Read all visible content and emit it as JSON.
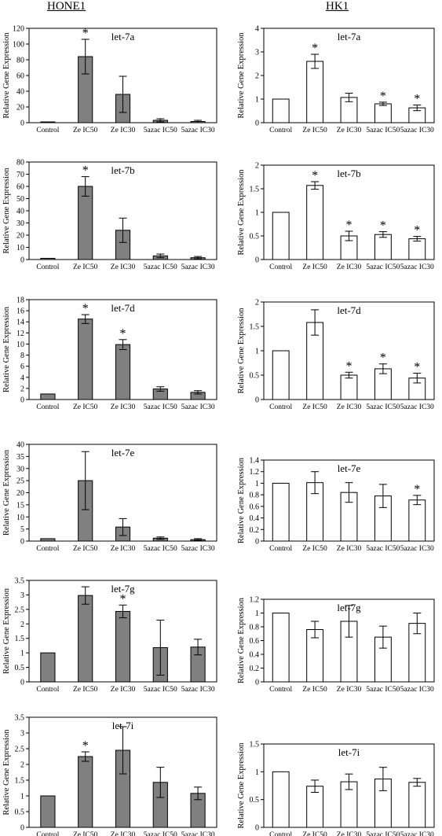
{
  "headers": {
    "left": "HONE1",
    "right": "HK1"
  },
  "common": {
    "ylabel": "Relative Gene Expression",
    "categories": [
      "Control",
      "Ze IC50",
      "Ze IC30",
      "5azac IC50",
      "5azac IC30"
    ],
    "colors": {
      "hone1_bar": "#808080",
      "hk1_bar": "#ffffff",
      "stroke": "#000000"
    },
    "significance_mark": "*"
  },
  "chart_data": [
    {
      "type": "bar",
      "column": "HONE1",
      "title": "let-7a",
      "ylim": [
        0,
        120
      ],
      "yticks": [
        0,
        20,
        40,
        60,
        80,
        100,
        120
      ],
      "values": [
        1,
        84,
        36,
        3,
        1.5
      ],
      "errors": [
        0,
        22,
        23,
        2,
        1.5
      ],
      "significant": [
        false,
        true,
        false,
        false,
        false
      ]
    },
    {
      "type": "bar",
      "column": "HK1",
      "title": "let-7a",
      "ylim": [
        0,
        4
      ],
      "yticks": [
        0,
        1,
        2,
        3,
        4
      ],
      "values": [
        1,
        2.6,
        1.07,
        0.8,
        0.63
      ],
      "errors": [
        0,
        0.3,
        0.18,
        0.07,
        0.12
      ],
      "significant": [
        false,
        true,
        false,
        true,
        true
      ]
    },
    {
      "type": "bar",
      "column": "HONE1",
      "title": "let-7b",
      "ylim": [
        0,
        80
      ],
      "yticks": [
        0,
        10,
        20,
        30,
        40,
        50,
        60,
        70,
        80
      ],
      "values": [
        1,
        60,
        24,
        3,
        1.5
      ],
      "errors": [
        0,
        8,
        10,
        1.5,
        1
      ],
      "significant": [
        false,
        true,
        false,
        false,
        false
      ]
    },
    {
      "type": "bar",
      "column": "HK1",
      "title": "let-7b",
      "ylim": [
        0,
        2
      ],
      "yticks": [
        0,
        0.5,
        1,
        1.5,
        2
      ],
      "values": [
        1,
        1.57,
        0.5,
        0.53,
        0.44
      ],
      "errors": [
        0,
        0.08,
        0.1,
        0.06,
        0.05
      ],
      "significant": [
        false,
        true,
        true,
        true,
        true
      ]
    },
    {
      "type": "bar",
      "column": "HONE1",
      "title": "let-7d",
      "ylim": [
        0,
        18
      ],
      "yticks": [
        0,
        2,
        4,
        6,
        8,
        10,
        12,
        14,
        16,
        18
      ],
      "values": [
        1,
        14.5,
        9.9,
        1.9,
        1.3
      ],
      "errors": [
        0,
        0.8,
        0.9,
        0.4,
        0.3
      ],
      "significant": [
        false,
        true,
        true,
        false,
        false
      ]
    },
    {
      "type": "bar",
      "column": "HK1",
      "title": "let-7d",
      "ylim": [
        0,
        2
      ],
      "yticks": [
        0,
        0.5,
        1,
        1.5,
        2
      ],
      "values": [
        1,
        1.58,
        0.5,
        0.63,
        0.44
      ],
      "errors": [
        0,
        0.26,
        0.06,
        0.1,
        0.1
      ],
      "significant": [
        false,
        false,
        true,
        true,
        true
      ]
    },
    {
      "type": "bar",
      "column": "HONE1",
      "title": "let-7e",
      "ylim": [
        0,
        40
      ],
      "yticks": [
        0,
        5,
        10,
        15,
        20,
        25,
        30,
        35,
        40
      ],
      "values": [
        1,
        25,
        5.8,
        1.2,
        0.6
      ],
      "errors": [
        0,
        12,
        3.5,
        0.5,
        0.4
      ],
      "significant": [
        false,
        false,
        false,
        false,
        false
      ]
    },
    {
      "type": "bar",
      "column": "HK1",
      "title": "let-7e",
      "ylim": [
        0,
        1.4
      ],
      "yticks": [
        0,
        0.2,
        0.4,
        0.6,
        0.8,
        1,
        1.2,
        1.4
      ],
      "values": [
        1,
        1.01,
        0.84,
        0.78,
        0.71
      ],
      "errors": [
        0,
        0.19,
        0.17,
        0.2,
        0.08
      ],
      "significant": [
        false,
        false,
        false,
        false,
        true
      ]
    },
    {
      "type": "bar",
      "column": "HONE1",
      "title": "let-7g",
      "ylim": [
        0,
        3.5
      ],
      "yticks": [
        0,
        0.5,
        1,
        1.5,
        2,
        2.5,
        3,
        3.5
      ],
      "values": [
        1,
        2.98,
        2.43,
        1.18,
        1.2
      ],
      "errors": [
        0,
        0.3,
        0.22,
        0.95,
        0.27
      ],
      "significant": [
        false,
        false,
        true,
        false,
        false
      ]
    },
    {
      "type": "bar",
      "column": "HK1",
      "title": "let-7g",
      "ylim": [
        0,
        1.2
      ],
      "yticks": [
        0,
        0.2,
        0.4,
        0.6,
        0.8,
        1,
        1.2
      ],
      "values": [
        1,
        0.76,
        0.88,
        0.65,
        0.85
      ],
      "errors": [
        0,
        0.12,
        0.23,
        0.16,
        0.15
      ],
      "significant": [
        false,
        false,
        false,
        false,
        false
      ]
    },
    {
      "type": "bar",
      "column": "HONE1",
      "title": "let-7i",
      "ylim": [
        0,
        3.5
      ],
      "yticks": [
        0,
        0.5,
        1,
        1.5,
        2,
        2.5,
        3,
        3.5
      ],
      "values": [
        1,
        2.25,
        2.45,
        1.43,
        1.08
      ],
      "errors": [
        0,
        0.15,
        0.75,
        0.48,
        0.2
      ],
      "significant": [
        false,
        true,
        false,
        false,
        false
      ]
    },
    {
      "type": "bar",
      "column": "HK1",
      "title": "let-7i",
      "ylim": [
        0,
        1.5
      ],
      "yticks": [
        0,
        0.5,
        1,
        1.5
      ],
      "values": [
        1,
        0.74,
        0.82,
        0.87,
        0.81
      ],
      "errors": [
        0,
        0.11,
        0.14,
        0.21,
        0.07
      ],
      "significant": [
        false,
        false,
        false,
        false,
        false
      ]
    }
  ]
}
